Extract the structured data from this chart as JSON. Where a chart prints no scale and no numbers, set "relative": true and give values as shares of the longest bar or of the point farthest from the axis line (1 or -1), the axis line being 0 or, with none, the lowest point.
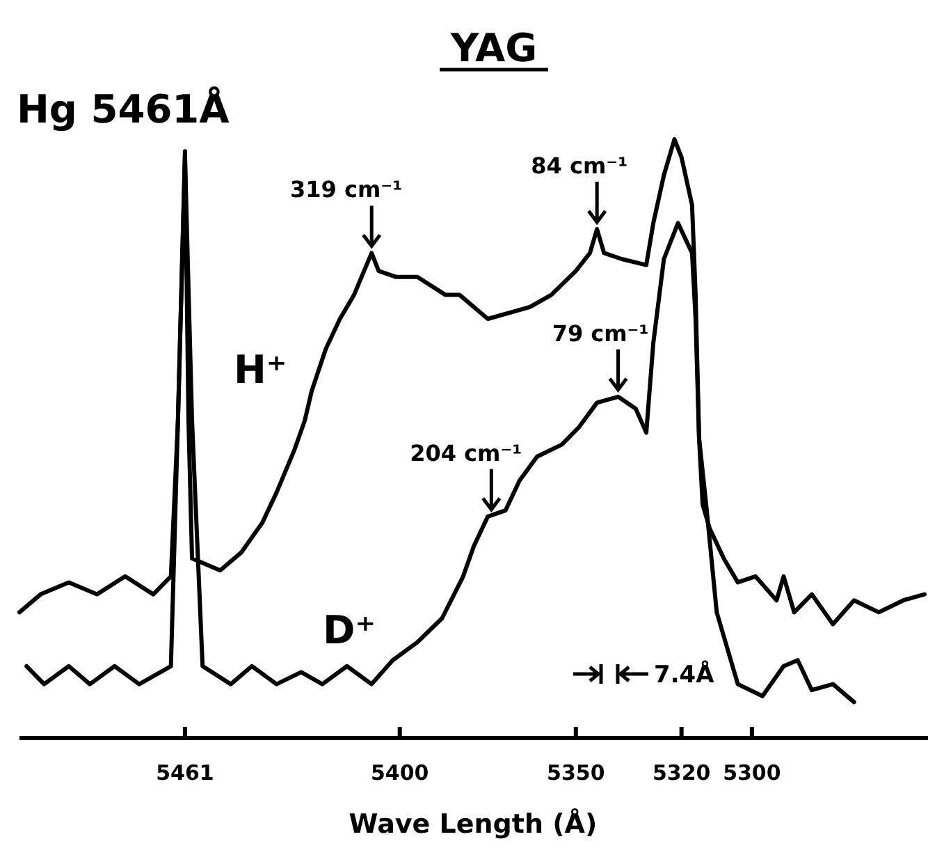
{
  "chart_data": {
    "type": "line",
    "relative": true,
    "title": "YAG",
    "xlabel": "Wave Length (Å)",
    "xlim": [
      5508,
      5250
    ],
    "xticks": [
      5461,
      5400,
      5350,
      5320,
      5300
    ],
    "grid": false,
    "legend": false,
    "marker": "none",
    "line_style": "solid",
    "series": [
      {
        "name": "H⁺",
        "color": "#000000",
        "x": [
          5508,
          5502,
          5494,
          5486,
          5478,
          5470,
          5465,
          5463,
          5461,
          5460,
          5459,
          5451,
          5445,
          5439,
          5435,
          5430,
          5427,
          5425,
          5421,
          5417,
          5413,
          5408,
          5406,
          5401,
          5395,
          5387,
          5383,
          5375,
          5363,
          5357,
          5350,
          5346,
          5344,
          5342,
          5337,
          5330,
          5328,
          5325,
          5322,
          5320,
          5317,
          5316,
          5315,
          5314,
          5312,
          5308,
          5304,
          5299,
          5293,
          5291,
          5288,
          5283,
          5277,
          5271,
          5264,
          5257,
          5251
        ],
        "values": [
          0.21,
          0.24,
          0.26,
          0.24,
          0.27,
          0.24,
          0.27,
          0.53,
          0.98,
          0.53,
          0.3,
          0.28,
          0.31,
          0.36,
          0.41,
          0.48,
          0.53,
          0.58,
          0.65,
          0.7,
          0.74,
          0.81,
          0.78,
          0.77,
          0.77,
          0.74,
          0.74,
          0.7,
          0.72,
          0.74,
          0.78,
          0.81,
          0.85,
          0.81,
          0.8,
          0.79,
          0.86,
          0.94,
          1,
          0.97,
          0.89,
          0.74,
          0.5,
          0.39,
          0.35,
          0.3,
          0.26,
          0.27,
          0.23,
          0.27,
          0.21,
          0.24,
          0.19,
          0.23,
          0.21,
          0.23,
          0.24
        ]
      },
      {
        "name": "D⁺",
        "color": "#000000",
        "x": [
          5506,
          5501,
          5494,
          5488,
          5481,
          5474,
          5465,
          5463,
          5461,
          5459,
          5456,
          5448,
          5442,
          5435,
          5428,
          5422,
          5415,
          5408,
          5402,
          5395,
          5388,
          5382,
          5379,
          5375,
          5370,
          5366,
          5361,
          5354,
          5349,
          5344,
          5338,
          5333,
          5330,
          5328,
          5325,
          5321,
          5317,
          5316,
          5315,
          5313,
          5311,
          5310,
          5307,
          5304,
          5297,
          5291,
          5287,
          5283,
          5277,
          5271
        ],
        "values": [
          0.12,
          0.09,
          0.12,
          0.09,
          0.12,
          0.09,
          0.12,
          0.53,
          0.97,
          0.53,
          0.12,
          0.09,
          0.12,
          0.09,
          0.11,
          0.09,
          0.12,
          0.09,
          0.13,
          0.16,
          0.2,
          0.27,
          0.32,
          0.37,
          0.38,
          0.43,
          0.47,
          0.49,
          0.52,
          0.56,
          0.57,
          0.55,
          0.51,
          0.66,
          0.8,
          0.86,
          0.81,
          0.7,
          0.5,
          0.39,
          0.27,
          0.21,
          0.15,
          0.09,
          0.07,
          0.12,
          0.13,
          0.08,
          0.09,
          0.06
        ]
      }
    ],
    "annotations": [
      "Hg 5461Å",
      "7.4Å",
      {
        "text": "319 cm⁻¹",
        "x": 5408,
        "y": 0.81
      },
      {
        "text": "84 cm⁻¹",
        "x": 5344,
        "y": 0.85
      },
      {
        "text": "79 cm⁻¹",
        "x": 5338,
        "y": 0.57
      },
      {
        "text": "204 cm⁻¹",
        "x": 5374,
        "y": 0.37
      }
    ]
  }
}
